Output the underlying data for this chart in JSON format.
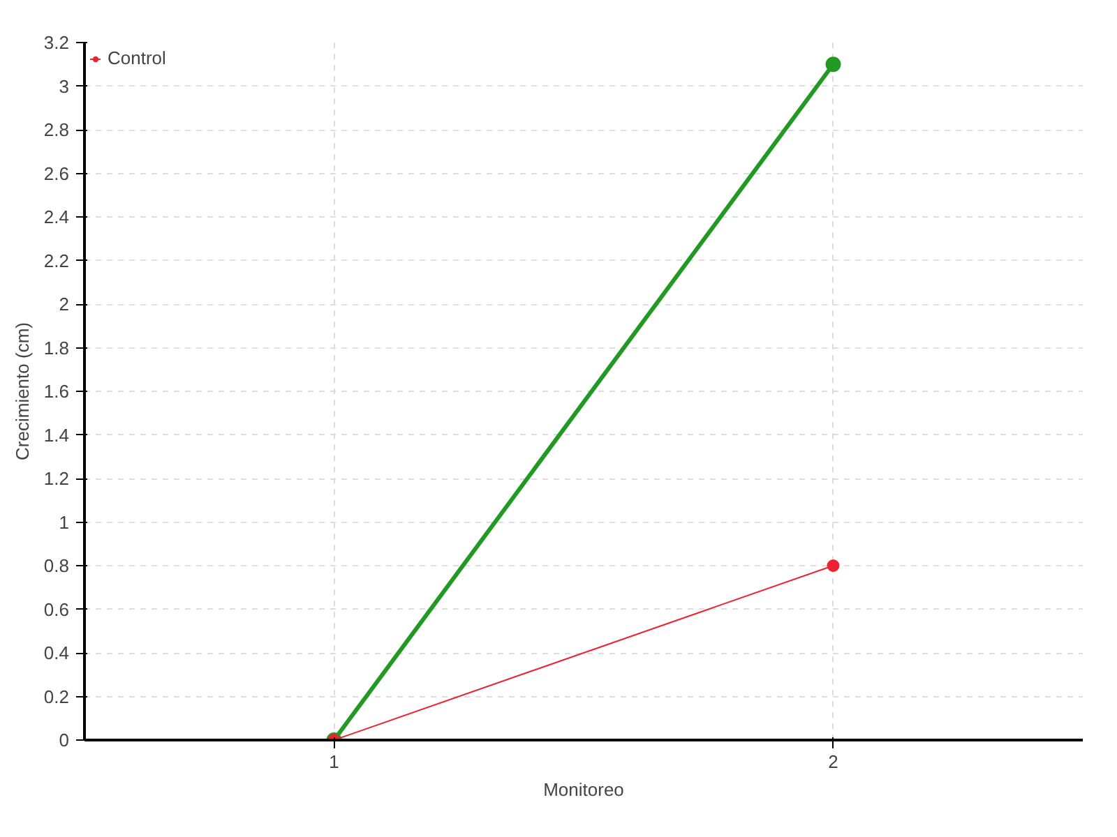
{
  "chart_data": {
    "type": "line",
    "xlabel": "Monitoreo",
    "ylabel": "Crecimiento (cm)",
    "x": [
      1,
      2
    ],
    "series": [
      {
        "color": "#229922",
        "values": [
          0,
          3.1
        ]
      },
      {
        "name": "Control",
        "color": "#ee2233",
        "values": [
          0,
          0.8
        ]
      }
    ],
    "xlim": [
      0.5,
      2.5
    ],
    "xticks": [
      1,
      2
    ],
    "ylim": [
      0,
      3.2
    ],
    "yticks": [
      0,
      0.2,
      0.4,
      0.6,
      0.8,
      1,
      1.2,
      1.4,
      1.6,
      1.8,
      2,
      2.2,
      2.4,
      2.6,
      2.8,
      3,
      3.2
    ],
    "grid": true,
    "legend": "top left",
    "marker": "circle",
    "line_style": "solid"
  }
}
